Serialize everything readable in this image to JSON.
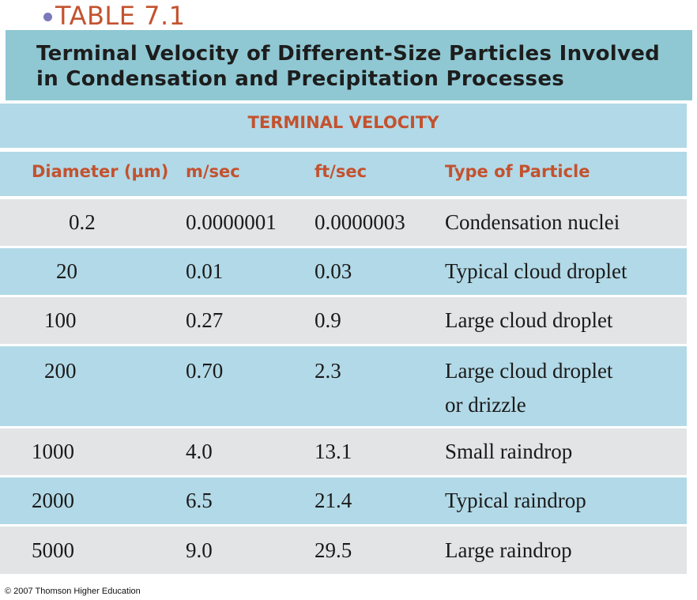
{
  "table_label": "TABLE 7.1",
  "title": "Terminal Velocity of Different-Size Particles Involved in Condensation and Precipitation Processes",
  "spanning_header": "TERMINAL VELOCITY",
  "columns": [
    "Diameter (µm)",
    "m/sec",
    "ft/sec",
    "Type of Particle"
  ],
  "rows": [
    {
      "diameter": "0.2",
      "msec": "0.0000001",
      "ftsec": "0.0000003",
      "type": "Condensation nuclei",
      "type2": ""
    },
    {
      "diameter": "20",
      "msec": "0.01",
      "ftsec": "0.03",
      "type": "Typical cloud droplet",
      "type2": ""
    },
    {
      "diameter": "100",
      "msec": "0.27",
      "ftsec": "0.9",
      "type": "Large cloud droplet",
      "type2": ""
    },
    {
      "diameter": "200",
      "msec": "0.70",
      "ftsec": "2.3",
      "type": "Large cloud droplet",
      "type2": "or drizzle"
    },
    {
      "diameter": "1000",
      "msec": "4.0",
      "ftsec": "13.1",
      "type": "Small raindrop",
      "type2": ""
    },
    {
      "diameter": "2000",
      "msec": "6.5",
      "ftsec": "21.4",
      "type": "Typical raindrop",
      "type2": ""
    },
    {
      "diameter": "5000",
      "msec": "9.0",
      "ftsec": "29.5",
      "type": "Large raindrop",
      "type2": ""
    }
  ],
  "copyright": "© 2007 Thomson Higher Education",
  "colors": {
    "accent": "#c3522f",
    "title_band": "#8fc8d3",
    "row_blue": "#b2d9e7",
    "row_gray": "#e2e4e5",
    "bullet": "#7b79b9"
  }
}
